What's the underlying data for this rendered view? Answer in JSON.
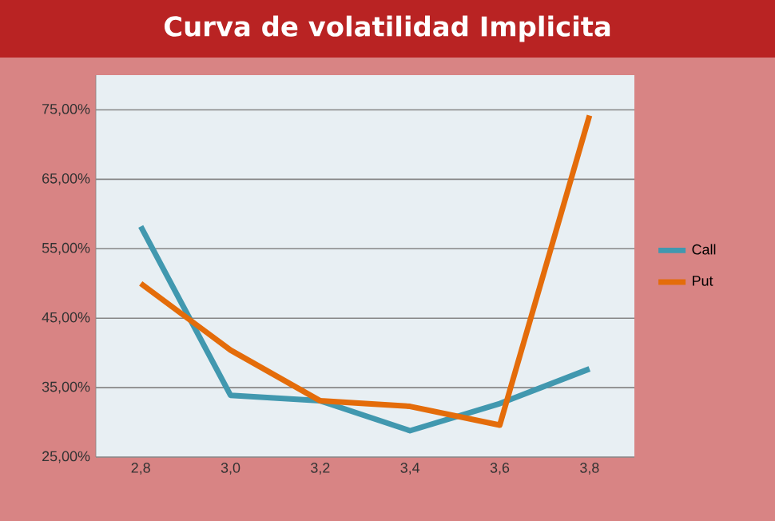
{
  "chart_data": {
    "type": "line",
    "title": "Curva de volatilidad Implicita",
    "categories": [
      "2,8",
      "3,0",
      "3,2",
      "3,4",
      "3,6",
      "3,8"
    ],
    "series": [
      {
        "name": "Call",
        "color": "#4198af",
        "values": [
          58.2,
          33.9,
          33.1,
          28.8,
          32.7,
          37.7
        ]
      },
      {
        "name": "Put",
        "color": "#e46c0a",
        "values": [
          50.0,
          40.4,
          33.1,
          32.3,
          29.6,
          74.2
        ]
      }
    ],
    "ylim": [
      25,
      80
    ],
    "yticks": [
      {
        "value": 25,
        "label": "25,00%"
      },
      {
        "value": 35,
        "label": "35,00%"
      },
      {
        "value": 45,
        "label": "45,00%"
      },
      {
        "value": 55,
        "label": "55,00%"
      },
      {
        "value": 65,
        "label": "65,00%"
      },
      {
        "value": 75,
        "label": "75,00%"
      }
    ],
    "grid": "y",
    "legend": "right",
    "marker": "none",
    "line_style": "solid"
  }
}
